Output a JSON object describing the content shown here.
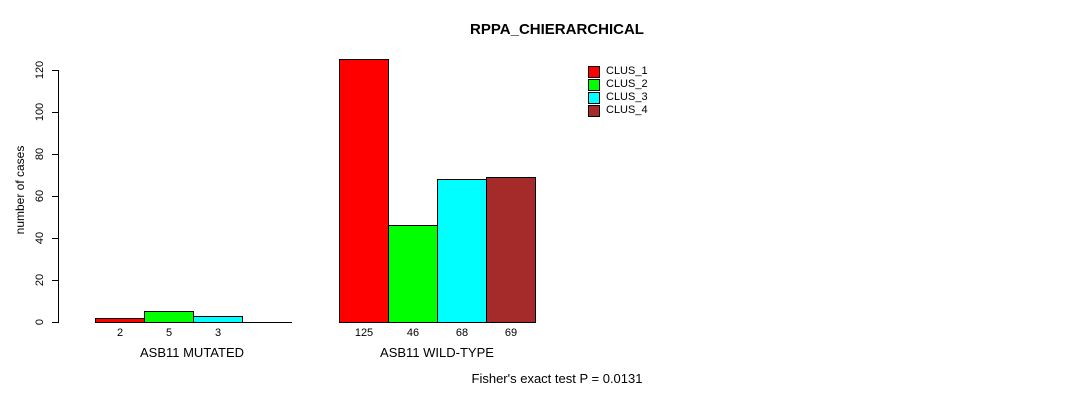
{
  "chart_data": {
    "type": "bar",
    "title": "RPPA_CHIERARCHICAL",
    "ylabel": "number of cases",
    "xlabel": "",
    "categories": [
      "ASB11 MUTATED",
      "ASB11 WILD-TYPE"
    ],
    "series": [
      {
        "name": "CLUS_1",
        "color": "#FF0000",
        "values": [
          2,
          125
        ]
      },
      {
        "name": "CLUS_2",
        "color": "#00FF00",
        "values": [
          5,
          46
        ]
      },
      {
        "name": "CLUS_3",
        "color": "#00FFFF",
        "values": [
          3,
          68
        ]
      },
      {
        "name": "CLUS_4",
        "color": "#A52A2A",
        "values": [
          0,
          69
        ]
      }
    ],
    "bar_labels": [
      [
        "2",
        "5",
        "3",
        ""
      ],
      [
        "125",
        "46",
        "68",
        "69"
      ]
    ],
    "yticks": [
      0,
      20,
      40,
      60,
      80,
      100,
      120
    ],
    "ylim": [
      0,
      125
    ],
    "grid": false,
    "legend_position": "top-right",
    "axis_color": "#000000",
    "footnote": "Fisher's exact test P = 0.0131"
  }
}
